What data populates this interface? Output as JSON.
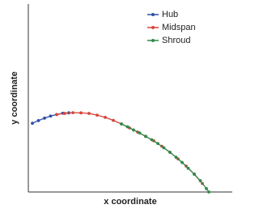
{
  "chart_data": {
    "type": "line",
    "xlabel": "x coordinate",
    "ylabel": "y coordinate",
    "xlim": [
      0,
      100
    ],
    "ylim": [
      0,
      100
    ],
    "legend": "upper right",
    "series": [
      {
        "name": "Hub",
        "color": "#2f4fa8",
        "x": [
          2,
          5,
          8,
          11,
          14,
          17,
          20
        ],
        "values": [
          36.6,
          38.0,
          39.3,
          40.4,
          41.2,
          41.9,
          42.1
        ]
      },
      {
        "name": "Midspan",
        "color": "#d9443a",
        "x": [
          14,
          18,
          22,
          26,
          30,
          34,
          38,
          42,
          46,
          50,
          54,
          58,
          62,
          66,
          70,
          74,
          78,
          82,
          86
        ],
        "values": [
          41.2,
          41.8,
          42.2,
          42.1,
          41.8,
          40.9,
          39.7,
          38.1,
          36.2,
          34.1,
          31.9,
          29.6,
          27.2,
          24.3,
          21.1,
          17.6,
          13.8,
          9.5,
          4.5
        ]
      },
      {
        "name": "Shroud",
        "color": "#2e8b4a",
        "x": [
          46,
          49,
          52,
          55,
          58,
          61,
          64,
          67,
          70,
          73,
          76,
          79,
          82,
          85,
          88,
          89.2
        ],
        "values": [
          36.2,
          34.7,
          33.0,
          31.4,
          29.6,
          27.8,
          25.8,
          23.5,
          21.1,
          18.5,
          15.7,
          12.6,
          9.5,
          6.0,
          1.8,
          0
        ]
      }
    ]
  }
}
